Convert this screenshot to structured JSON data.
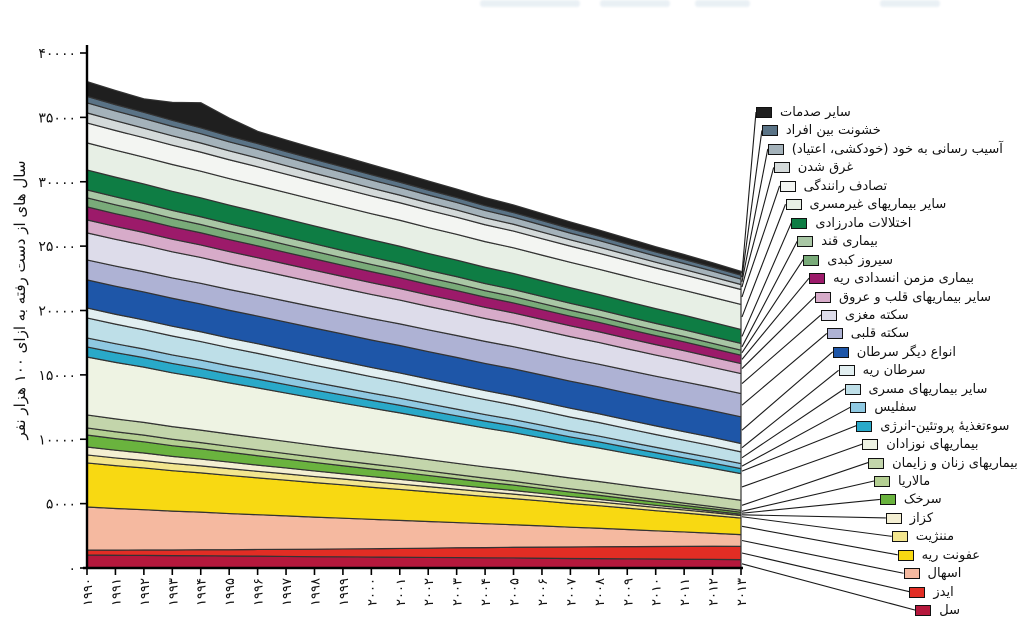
{
  "figure": {
    "y_axis": {
      "label": "سال های از دست رفته به ازای ۱۰۰ هزار نفر",
      "tick_labels": [
        "۰",
        "۵۰۰۰",
        "۱۰۰۰۰",
        "۱۵۰۰۰",
        "۲۰۰۰۰",
        "۲۵۰۰۰",
        "۳۰۰۰۰",
        "۳۵۰۰۰",
        "۴۰۰۰۰"
      ],
      "tick_values": [
        0,
        5000,
        10000,
        15000,
        20000,
        25000,
        30000,
        35000,
        40000
      ]
    },
    "x_axis": {
      "tick_labels": [
        "۱۹۹۰",
        "۱۹۹۱",
        "۱۹۹۲",
        "۱۹۹۳",
        "۱۹۹۴",
        "۱۹۹۵",
        "۱۹۹۶",
        "۱۹۹۷",
        "۱۹۹۸",
        "۱۹۹۹",
        "۲۰۰۰",
        "۲۰۰۱",
        "۲۰۰۲",
        "۲۰۰۳",
        "۲۰۰۴",
        "۲۰۰۵",
        "۲۰۰۶",
        "۲۰۰۷",
        "۲۰۰۸",
        "۲۰۰۹",
        "۲۰۱۰",
        "۲۰۱۱",
        "۲۰۱۲",
        "۲۰۱۳"
      ]
    }
  },
  "chart_data": {
    "type": "area",
    "stacked": true,
    "grid": false,
    "legend_position": "right",
    "x": [
      1990,
      1991,
      1992,
      1993,
      1994,
      1995,
      1996,
      1997,
      1998,
      1999,
      2000,
      2001,
      2002,
      2003,
      2004,
      2005,
      2006,
      2007,
      2008,
      2009,
      2010,
      2011,
      2012,
      2013
    ],
    "ylabel": "سال های از دست رفته به ازای ۱۰۰ هزار نفر",
    "ylim": [
      0,
      40000
    ],
    "series_bottom_to_top": [
      {
        "id": "tuberculosis",
        "name": "سل",
        "color": "#b5183c",
        "values": [
          1010,
          990,
          980,
          960,
          950,
          930,
          920,
          900,
          880,
          870,
          850,
          840,
          820,
          810,
          790,
          780,
          760,
          740,
          730,
          710,
          700,
          680,
          670,
          650
        ]
      },
      {
        "id": "hiv-aids",
        "name": "ایدز",
        "color": "#e22d24",
        "values": [
          390,
          400,
          420,
          440,
          470,
          490,
          520,
          550,
          580,
          610,
          650,
          680,
          720,
          760,
          790,
          830,
          860,
          890,
          920,
          950,
          970,
          1000,
          1020,
          1030
        ]
      },
      {
        "id": "diarrhea",
        "name": "اسهال",
        "color": "#f5b9a0",
        "values": [
          3340,
          3230,
          3130,
          3020,
          2920,
          2810,
          2700,
          2600,
          2490,
          2390,
          2280,
          2180,
          2070,
          1960,
          1860,
          1750,
          1650,
          1540,
          1440,
          1330,
          1220,
          1120,
          1010,
          910
        ]
      },
      {
        "id": "lung-infection",
        "name": "عفونت ریه",
        "color": "#f8d912",
        "values": [
          3420,
          3330,
          3240,
          3140,
          3050,
          2960,
          2860,
          2770,
          2680,
          2590,
          2490,
          2400,
          2310,
          2210,
          2120,
          2030,
          1940,
          1840,
          1750,
          1660,
          1560,
          1470,
          1380,
          1290
        ]
      },
      {
        "id": "meningitis",
        "name": "مننژیت",
        "color": "#f3e68e",
        "values": [
          620,
          600,
          580,
          560,
          540,
          530,
          510,
          490,
          470,
          450,
          440,
          420,
          400,
          380,
          360,
          350,
          330,
          310,
          290,
          270,
          260,
          240,
          220,
          200
        ]
      },
      {
        "id": "tetanus",
        "name": "کزاز",
        "color": "#f4efd2",
        "values": [
          620,
          600,
          580,
          550,
          530,
          510,
          480,
          460,
          440,
          410,
          390,
          370,
          350,
          320,
          300,
          280,
          250,
          230,
          210,
          180,
          160,
          140,
          120,
          100
        ]
      },
      {
        "id": "measles",
        "name": "سرخک",
        "color": "#6ab33e",
        "values": [
          930,
          900,
          870,
          830,
          800,
          760,
          730,
          690,
          660,
          620,
          590,
          560,
          520,
          490,
          450,
          420,
          380,
          350,
          310,
          280,
          250,
          210,
          180,
          150
        ]
      },
      {
        "id": "malaria",
        "name": "مالاریا",
        "color": "#b4cf92",
        "values": [
          550,
          530,
          520,
          500,
          480,
          460,
          450,
          430,
          410,
          390,
          380,
          360,
          340,
          320,
          310,
          290,
          270,
          250,
          240,
          220,
          200,
          180,
          170,
          150
        ]
      },
      {
        "id": "maternal",
        "name": "بیماریهای زنان و زایمان",
        "color": "#c3d5ab",
        "values": [
          1010,
          1000,
          990,
          980,
          970,
          960,
          950,
          940,
          930,
          920,
          910,
          900,
          890,
          880,
          870,
          860,
          850,
          840,
          830,
          820,
          810,
          800,
          790,
          780
        ]
      },
      {
        "id": "neonatal",
        "name": "بیماریهای نوزادان",
        "color": "#eef3e3",
        "values": [
          4500,
          4390,
          4290,
          4180,
          4080,
          3970,
          3870,
          3760,
          3650,
          3550,
          3440,
          3340,
          3230,
          3130,
          3020,
          2920,
          2810,
          2700,
          2600,
          2490,
          2390,
          2280,
          2180,
          2070
        ]
      },
      {
        "id": "protein-energy-malnutrition",
        "name": "سوءتغذیهٔ پروتئین-انرژی",
        "color": "#29a9c9",
        "values": [
          780,
          760,
          740,
          730,
          710,
          690,
          680,
          660,
          640,
          630,
          610,
          590,
          580,
          560,
          540,
          530,
          510,
          490,
          480,
          460,
          440,
          430,
          410,
          390
        ]
      },
      {
        "id": "syphilis",
        "name": "سفلیس",
        "color": "#8fc9e2",
        "values": [
          700,
          690,
          670,
          660,
          650,
          630,
          620,
          600,
          590,
          580,
          560,
          550,
          530,
          520,
          510,
          490,
          480,
          460,
          450,
          440,
          420,
          410,
          400,
          390
        ]
      },
      {
        "id": "other-communicable",
        "name": "سایر بیماریهای مسری",
        "color": "#bedfe8",
        "values": [
          1550,
          1520,
          1490,
          1470,
          1440,
          1410,
          1380,
          1360,
          1330,
          1300,
          1270,
          1240,
          1220,
          1190,
          1160,
          1130,
          1110,
          1080,
          1050,
          1020,
          990,
          970,
          940,
          910
        ]
      },
      {
        "id": "lung-cancer",
        "name": "سرطان ریه",
        "color": "#e2eff1",
        "values": [
          780,
          770,
          770,
          760,
          760,
          750,
          750,
          740,
          740,
          730,
          720,
          720,
          710,
          710,
          700,
          700,
          690,
          690,
          680,
          670,
          670,
          660,
          660,
          650
        ]
      },
      {
        "id": "other-cancers",
        "name": "انواع دیگر سرطان",
        "color": "#1e56a8",
        "values": [
          2180,
          2180,
          2170,
          2170,
          2160,
          2160,
          2150,
          2150,
          2140,
          2140,
          2130,
          2130,
          2120,
          2120,
          2110,
          2110,
          2100,
          2100,
          2090,
          2090,
          2080,
          2080,
          2070,
          2070
        ]
      },
      {
        "id": "heart-attack",
        "name": "سکته قلبی",
        "color": "#aeb2d4",
        "values": [
          1550,
          1560,
          1570,
          1580,
          1600,
          1610,
          1620,
          1630,
          1640,
          1650,
          1670,
          1680,
          1690,
          1700,
          1710,
          1720,
          1740,
          1750,
          1760,
          1770,
          1780,
          1790,
          1800,
          1810
        ]
      },
      {
        "id": "stroke",
        "name": "سکته مغزی",
        "color": "#dddcea",
        "values": [
          2100,
          2080,
          2060,
          2030,
          2010,
          1990,
          1960,
          1940,
          1920,
          1890,
          1870,
          1850,
          1820,
          1800,
          1780,
          1760,
          1730,
          1710,
          1690,
          1660,
          1640,
          1620,
          1570,
          1550
        ]
      },
      {
        "id": "other-cardiovascular",
        "name": "سایر بیماریهای قلب و عروق",
        "color": "#d7abc9",
        "values": [
          1010,
          1000,
          990,
          980,
          970,
          960,
          950,
          940,
          930,
          920,
          910,
          900,
          890,
          880,
          870,
          860,
          850,
          840,
          830,
          820,
          810,
          800,
          790,
          780
        ]
      },
      {
        "id": "copd",
        "name": "بیماری مزمن انسدادی ریه",
        "color": "#9c1a6a",
        "values": [
          1010,
          990,
          980,
          960,
          950,
          930,
          920,
          900,
          890,
          870,
          860,
          840,
          820,
          810,
          790,
          780,
          760,
          750,
          730,
          720,
          700,
          690,
          670,
          650
        ]
      },
      {
        "id": "liver-cirrhosis",
        "name": "سیروز کبدی",
        "color": "#79ab79",
        "values": [
          700,
          690,
          670,
          660,
          640,
          630,
          620,
          600,
          590,
          570,
          560,
          540,
          530,
          520,
          500,
          490,
          480,
          460,
          450,
          430,
          420,
          410,
          400,
          390
        ]
      },
      {
        "id": "diabetes",
        "name": "بیماری قند",
        "color": "#a9c7a5",
        "values": [
          620,
          620,
          610,
          610,
          600,
          600,
          590,
          590,
          580,
          580,
          570,
          570,
          560,
          560,
          550,
          550,
          540,
          540,
          530,
          530,
          530,
          520,
          520,
          520
        ]
      },
      {
        "id": "congenital-disorders",
        "name": "اختلالات مادرزادی",
        "color": "#0e7d44",
        "values": [
          1550,
          1530,
          1510,
          1490,
          1470,
          1450,
          1430,
          1410,
          1390,
          1370,
          1350,
          1330,
          1310,
          1290,
          1270,
          1250,
          1230,
          1210,
          1190,
          1170,
          1150,
          1130,
          1110,
          1090
        ]
      },
      {
        "id": "other-noncommunicable",
        "name": "سایر بیماریهای غیرمسری",
        "color": "#e7efe5",
        "values": [
          2100,
          2090,
          2080,
          2080,
          2070,
          2060,
          2050,
          2050,
          2040,
          2030,
          2020,
          2020,
          2010,
          2000,
          1990,
          1990,
          1980,
          1970,
          1960,
          1960,
          1950,
          1940,
          1940,
          1940
        ]
      },
      {
        "id": "road-traffic-accident",
        "name": "تصادف رانندگی",
        "color": "#f3f5f2",
        "values": [
          1550,
          1530,
          1510,
          1500,
          1480,
          1460,
          1450,
          1430,
          1410,
          1400,
          1380,
          1360,
          1350,
          1330,
          1310,
          1300,
          1280,
          1260,
          1240,
          1230,
          1210,
          1190,
          1180,
          1160
        ]
      },
      {
        "id": "drowning",
        "name": "غرق شدن",
        "color": "#d4dada",
        "values": [
          780,
          760,
          740,
          730,
          710,
          690,
          680,
          660,
          640,
          630,
          610,
          590,
          580,
          560,
          540,
          530,
          510,
          490,
          480,
          460,
          440,
          430,
          410,
          390
        ]
      },
      {
        "id": "self-harm",
        "name": "آسیب رسانی به خود (خودکشی، اعتیاد)",
        "color": "#a4b2ba",
        "values": [
          780,
          760,
          750,
          730,
          720,
          700,
          690,
          670,
          660,
          640,
          630,
          610,
          600,
          580,
          570,
          550,
          540,
          520,
          510,
          490,
          480,
          460,
          450,
          420
        ]
      },
      {
        "id": "interpersonal-violence",
        "name": "خشونت بین افراد",
        "color": "#5a7386",
        "values": [
          500,
          490,
          480,
          470,
          460,
          450,
          440,
          430,
          420,
          420,
          410,
          400,
          390,
          380,
          370,
          360,
          360,
          350,
          340,
          330,
          320,
          320,
          310,
          300
        ]
      },
      {
        "id": "other-injuries",
        "name": "سایر صدمات",
        "color": "#1f1f1f",
        "values": [
          1150,
          1100,
          1050,
          1400,
          1950,
          1400,
          950,
          900,
          860,
          820,
          780,
          740,
          700,
          660,
          630,
          590,
          550,
          520,
          480,
          450,
          410,
          380,
          340,
          300
        ]
      }
    ]
  }
}
